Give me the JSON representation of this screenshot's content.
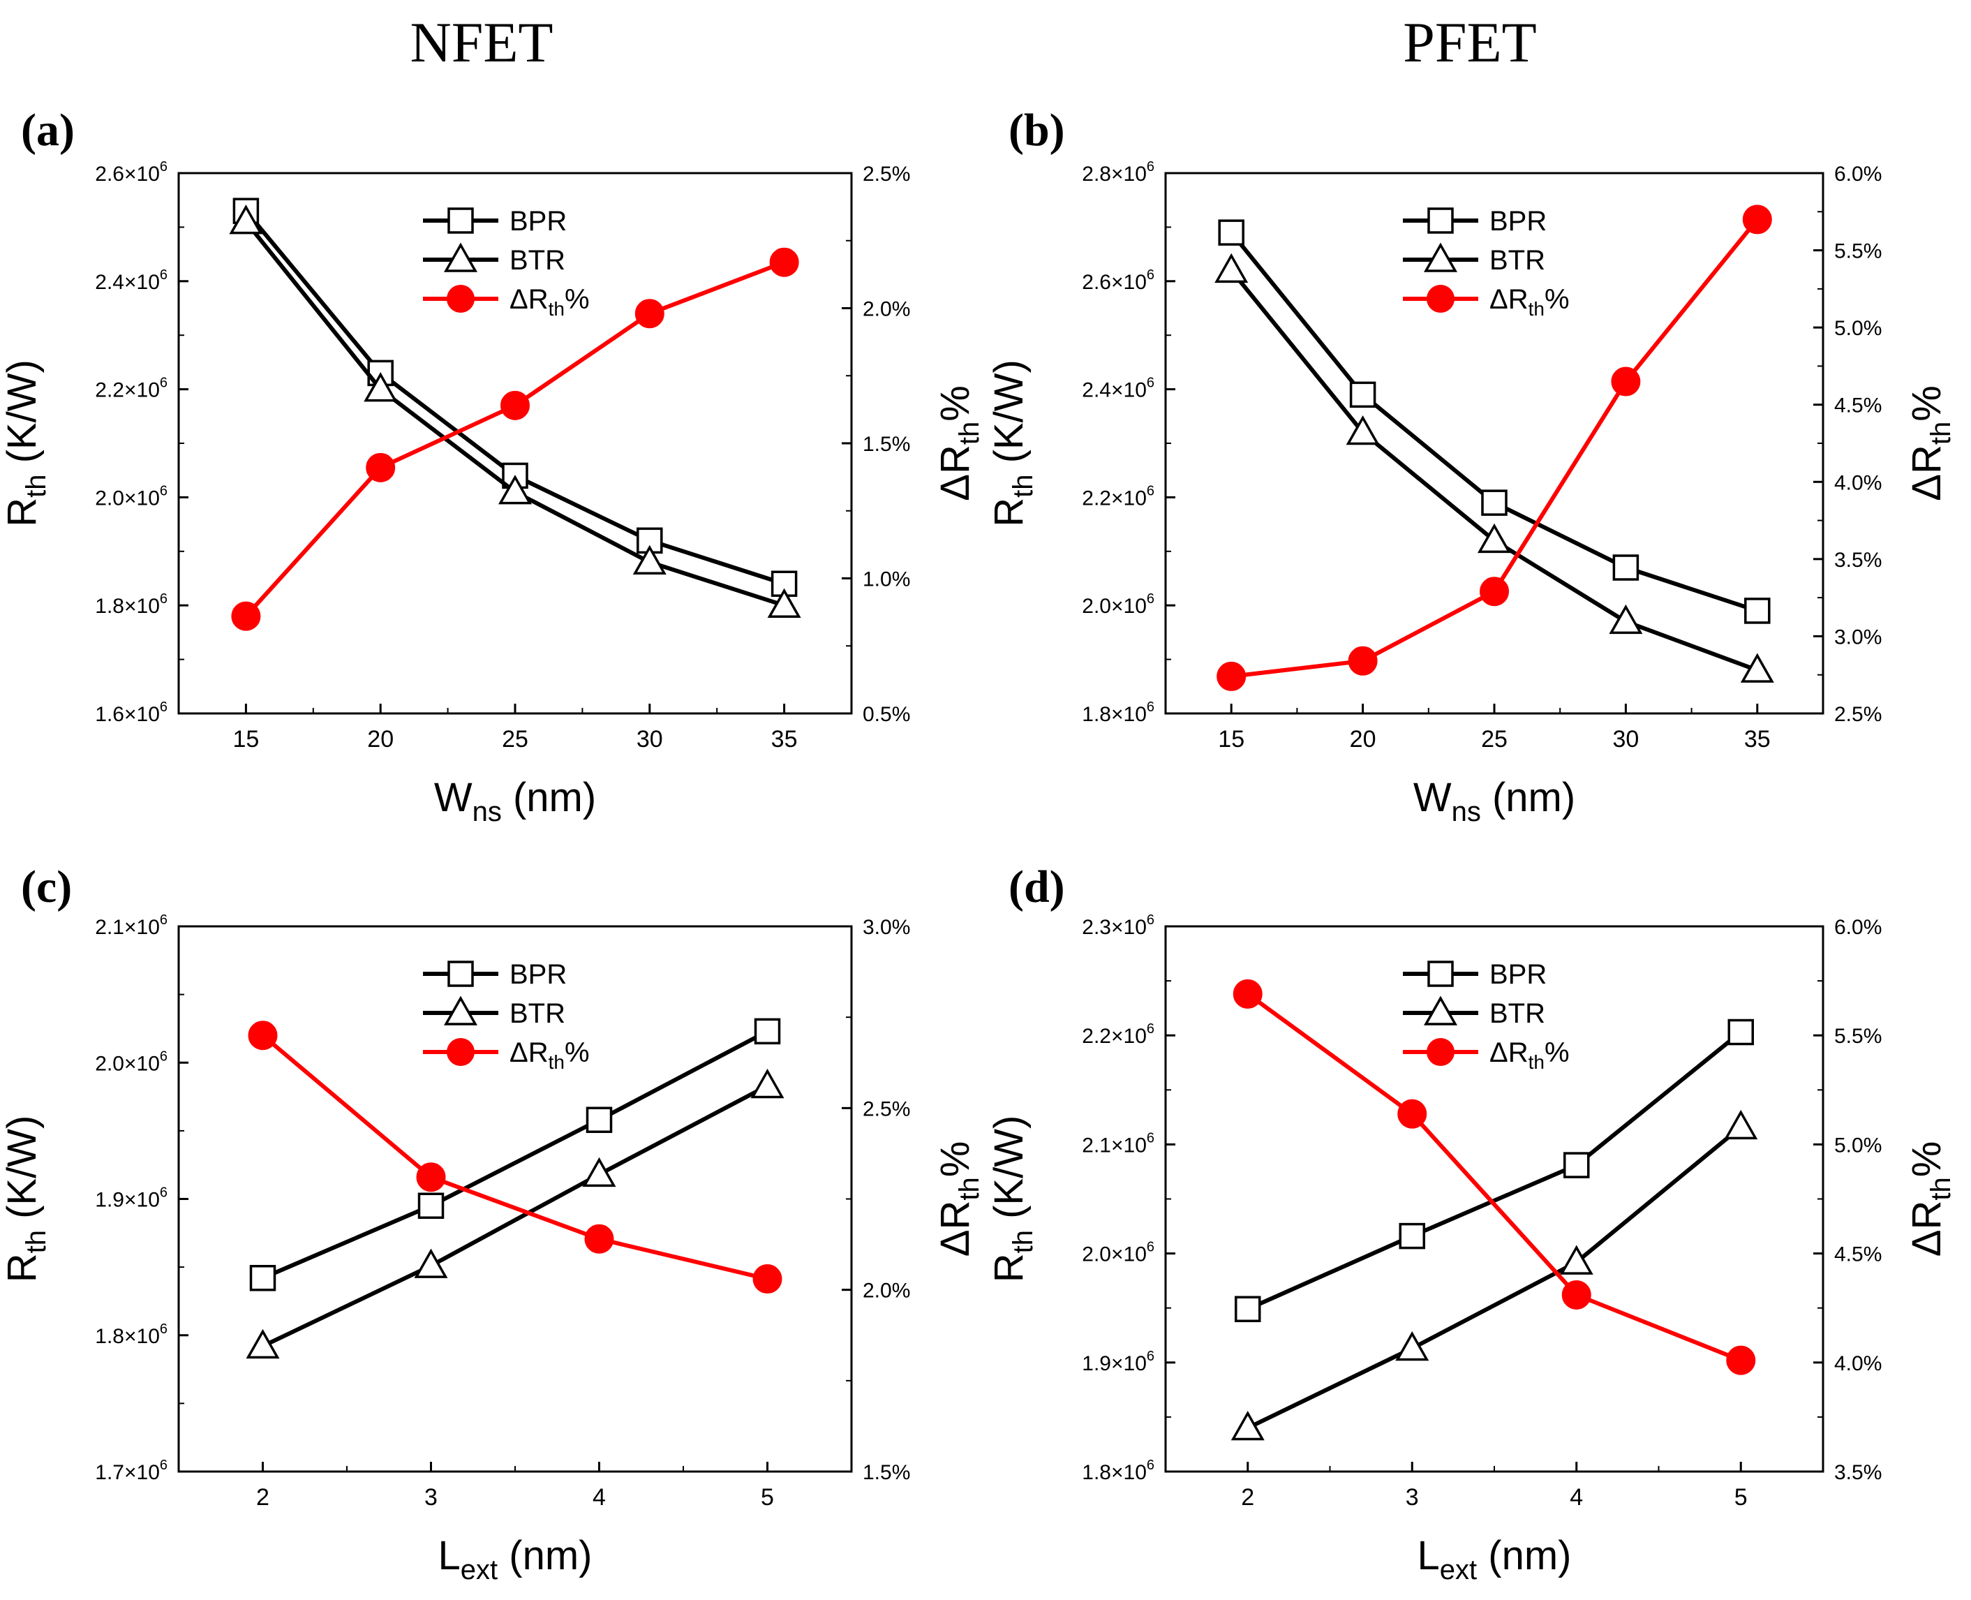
{
  "column_titles": {
    "left": "NFET",
    "right": "PFET"
  },
  "colors": {
    "bpr": "#000000",
    "btr": "#000000",
    "delta": "#ff0000"
  },
  "chart_data": [
    {
      "panel": "(a)",
      "device": "NFET",
      "type": "line",
      "xlabel_main": "W",
      "xlabel_sub": "ns",
      "xlabel_unit": " (nm)",
      "ylabel_left_main": "R",
      "ylabel_left_sub": "th",
      "ylabel_left_unit": " (K/W)",
      "ylabel_right_pre": "ΔR",
      "ylabel_right_sub": "th",
      "ylabel_right_post": "%",
      "x": [
        15,
        20,
        25,
        30,
        35
      ],
      "xlim": [
        12.5,
        37.5
      ],
      "xticks": [
        15,
        20,
        25,
        30,
        35
      ],
      "xtick_labels": [
        "15",
        "20",
        "25",
        "30",
        "35"
      ],
      "ylim_left": [
        1.6,
        2.6
      ],
      "yticks_left": [
        1.6,
        1.8,
        2.0,
        2.2,
        2.4,
        2.6
      ],
      "ytick_labels_left": [
        "1.6×10",
        "1.8×10",
        "2.0×10",
        "2.2×10",
        "2.4×10",
        "2.6×10"
      ],
      "ytick_exp": "6",
      "ylim_right": [
        0.5,
        2.5
      ],
      "yticks_right": [
        0.5,
        1.0,
        1.5,
        2.0,
        2.5
      ],
      "ytick_labels_right": [
        "0.5%",
        "1.0%",
        "1.5%",
        "2.0%",
        "2.5%"
      ],
      "series": [
        {
          "name": "BPR",
          "axis": "left",
          "marker": "square",
          "values": [
            2.53,
            2.23,
            2.04,
            1.92,
            1.84
          ]
        },
        {
          "name": "BTR",
          "axis": "left",
          "marker": "triangle",
          "values": [
            2.51,
            2.2,
            2.01,
            1.88,
            1.8
          ]
        },
        {
          "name": "ΔR",
          "name_sub": "th",
          "name_post": "%",
          "axis": "right",
          "marker": "circle",
          "values": [
            0.86,
            1.41,
            1.64,
            1.98,
            2.17
          ]
        }
      ],
      "legend": [
        "BPR",
        "BTR",
        "ΔRth%"
      ],
      "legend_loc": "top-center"
    },
    {
      "panel": "(b)",
      "device": "PFET",
      "type": "line",
      "xlabel_main": "W",
      "xlabel_sub": "ns",
      "xlabel_unit": " (nm)",
      "ylabel_left_main": "R",
      "ylabel_left_sub": "th",
      "ylabel_left_unit": " (K/W)",
      "ylabel_right_pre": "ΔR",
      "ylabel_right_sub": "th",
      "ylabel_right_post": "%",
      "x": [
        15,
        20,
        25,
        30,
        35
      ],
      "xlim": [
        12.5,
        37.5
      ],
      "xticks": [
        15,
        20,
        25,
        30,
        35
      ],
      "xtick_labels": [
        "15",
        "20",
        "25",
        "30",
        "35"
      ],
      "ylim_left": [
        1.8,
        2.8
      ],
      "yticks_left": [
        1.8,
        2.0,
        2.2,
        2.4,
        2.6,
        2.8
      ],
      "ytick_labels_left": [
        "1.8×10",
        "2.0×10",
        "2.2×10",
        "2.4×10",
        "2.6×10",
        "2.8×10"
      ],
      "ytick_exp": "6",
      "ylim_right": [
        2.5,
        6.0
      ],
      "yticks_right": [
        2.5,
        3.0,
        3.5,
        4.0,
        4.5,
        5.0,
        5.5,
        6.0
      ],
      "ytick_labels_right": [
        "2.5%",
        "3.0%",
        "3.5%",
        "4.0%",
        "4.5%",
        "5.0%",
        "5.5%",
        "6.0%"
      ],
      "series": [
        {
          "name": "BPR",
          "axis": "left",
          "marker": "square",
          "values": [
            2.69,
            2.39,
            2.19,
            2.07,
            1.99
          ]
        },
        {
          "name": "BTR",
          "axis": "left",
          "marker": "triangle",
          "values": [
            2.62,
            2.32,
            2.12,
            1.97,
            1.88
          ]
        },
        {
          "name": "ΔR",
          "name_sub": "th",
          "name_post": "%",
          "axis": "right",
          "marker": "circle",
          "values": [
            2.74,
            2.84,
            3.29,
            4.65,
            5.7
          ]
        }
      ],
      "legend": [
        "BPR",
        "BTR",
        "ΔRth%"
      ],
      "legend_loc": "top-center"
    },
    {
      "panel": "(c)",
      "device": "NFET",
      "type": "line",
      "xlabel_main": "L",
      "xlabel_sub": "ext",
      "xlabel_unit": " (nm)",
      "ylabel_left_main": "R",
      "ylabel_left_sub": "th",
      "ylabel_left_unit": " (K/W)",
      "ylabel_right_pre": "ΔR",
      "ylabel_right_sub": "th",
      "ylabel_right_post": "%",
      "x": [
        2,
        3,
        4,
        5
      ],
      "xlim": [
        1.5,
        5.5
      ],
      "xticks": [
        2,
        3,
        4,
        5
      ],
      "xtick_labels": [
        "2",
        "3",
        "4",
        "5"
      ],
      "ylim_left": [
        1.7,
        2.1
      ],
      "yticks_left": [
        1.7,
        1.8,
        1.9,
        2.0,
        2.1
      ],
      "ytick_labels_left": [
        "1.7×10",
        "1.8×10",
        "1.9×10",
        "2.0×10",
        "2.1×10"
      ],
      "ytick_exp": "6",
      "ylim_right": [
        1.5,
        3.0
      ],
      "yticks_right": [
        1.5,
        2.0,
        2.5,
        3.0
      ],
      "ytick_labels_right": [
        "1.5%",
        "2.0%",
        "2.5%",
        "3.0%"
      ],
      "series": [
        {
          "name": "BPR",
          "axis": "left",
          "marker": "square",
          "values": [
            1.842,
            1.895,
            1.958,
            2.023
          ]
        },
        {
          "name": "BTR",
          "axis": "left",
          "marker": "triangle",
          "values": [
            1.792,
            1.851,
            1.918,
            1.983
          ]
        },
        {
          "name": "ΔR",
          "name_sub": "th",
          "name_post": "%",
          "axis": "right",
          "marker": "circle",
          "values": [
            2.7,
            2.31,
            2.14,
            2.03
          ]
        }
      ],
      "legend": [
        "BPR",
        "BTR",
        "ΔRth%"
      ],
      "legend_loc": "top-center"
    },
    {
      "panel": "(d)",
      "device": "PFET",
      "type": "line",
      "xlabel_main": "L",
      "xlabel_sub": "ext",
      "xlabel_unit": " (nm)",
      "ylabel_left_main": "R",
      "ylabel_left_sub": "th",
      "ylabel_left_unit": " (K/W)",
      "ylabel_right_pre": "ΔR",
      "ylabel_right_sub": "th",
      "ylabel_right_post": "%",
      "x": [
        2,
        3,
        4,
        5
      ],
      "xlim": [
        1.5,
        5.5
      ],
      "xticks": [
        2,
        3,
        4,
        5
      ],
      "xtick_labels": [
        "2",
        "3",
        "4",
        "5"
      ],
      "ylim_left": [
        1.8,
        2.3
      ],
      "yticks_left": [
        1.8,
        1.9,
        2.0,
        2.1,
        2.2,
        2.3
      ],
      "ytick_labels_left": [
        "1.8×10",
        "1.9×10",
        "2.0×10",
        "2.1×10",
        "2.2×10",
        "2.3×10"
      ],
      "ytick_exp": "6",
      "ylim_right": [
        3.5,
        6.0
      ],
      "yticks_right": [
        3.5,
        4.0,
        4.5,
        5.0,
        5.5,
        6.0
      ],
      "ytick_labels_right": [
        "3.5%",
        "4.0%",
        "4.5%",
        "5.0%",
        "5.5%",
        "6.0%"
      ],
      "series": [
        {
          "name": "BPR",
          "axis": "left",
          "marker": "square",
          "values": [
            1.949,
            2.016,
            2.081,
            2.203
          ]
        },
        {
          "name": "BTR",
          "axis": "left",
          "marker": "triangle",
          "values": [
            1.84,
            1.913,
            1.992,
            2.116
          ]
        },
        {
          "name": "ΔR",
          "name_sub": "th",
          "name_post": "%",
          "axis": "right",
          "marker": "circle",
          "values": [
            5.69,
            5.14,
            4.31,
            4.01
          ]
        }
      ],
      "legend": [
        "BPR",
        "BTR",
        "ΔRth%"
      ],
      "legend_loc": "top-center"
    }
  ]
}
